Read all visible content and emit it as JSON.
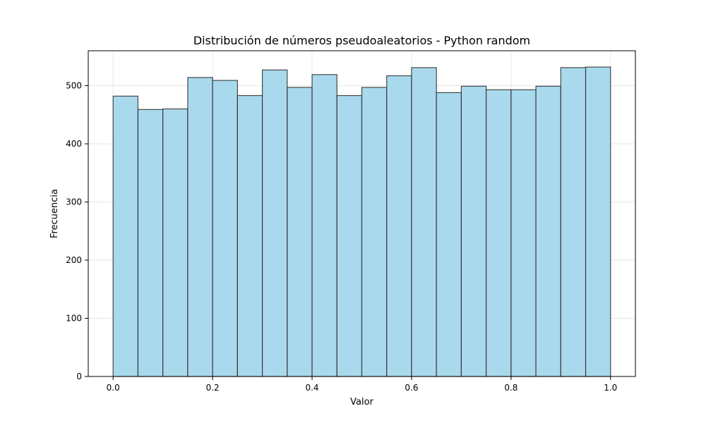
{
  "chart_data": {
    "type": "bar",
    "title": "Distribución de números pseudoaleatorios - Python random",
    "xlabel": "Valor",
    "ylabel": "Frecuencia",
    "xlim": [
      -0.05,
      1.05
    ],
    "ylim": [
      0,
      560
    ],
    "grid": true,
    "bin_edges": [
      0.0,
      0.05,
      0.1,
      0.15,
      0.2,
      0.25,
      0.3,
      0.35,
      0.4,
      0.45,
      0.5,
      0.55,
      0.6,
      0.65,
      0.7,
      0.75,
      0.8,
      0.85,
      0.9,
      0.95,
      1.0
    ],
    "values": [
      482,
      459,
      460,
      514,
      509,
      483,
      527,
      497,
      519,
      483,
      497,
      517,
      531,
      488,
      499,
      493,
      493,
      499,
      531,
      532
    ],
    "xticks": [
      0.0,
      0.2,
      0.4,
      0.6,
      0.8,
      1.0
    ],
    "xtick_labels": [
      "0.0",
      "0.2",
      "0.4",
      "0.6",
      "0.8",
      "1.0"
    ],
    "yticks": [
      0,
      100,
      200,
      300,
      400,
      500
    ],
    "ytick_labels": [
      "0",
      "100",
      "200",
      "300",
      "400",
      "500"
    ],
    "colors": {
      "bar_fill": "#a9d9ed",
      "bar_edge": "#2b2b2b",
      "grid": "#e6e6e6",
      "axis": "#000000"
    }
  }
}
